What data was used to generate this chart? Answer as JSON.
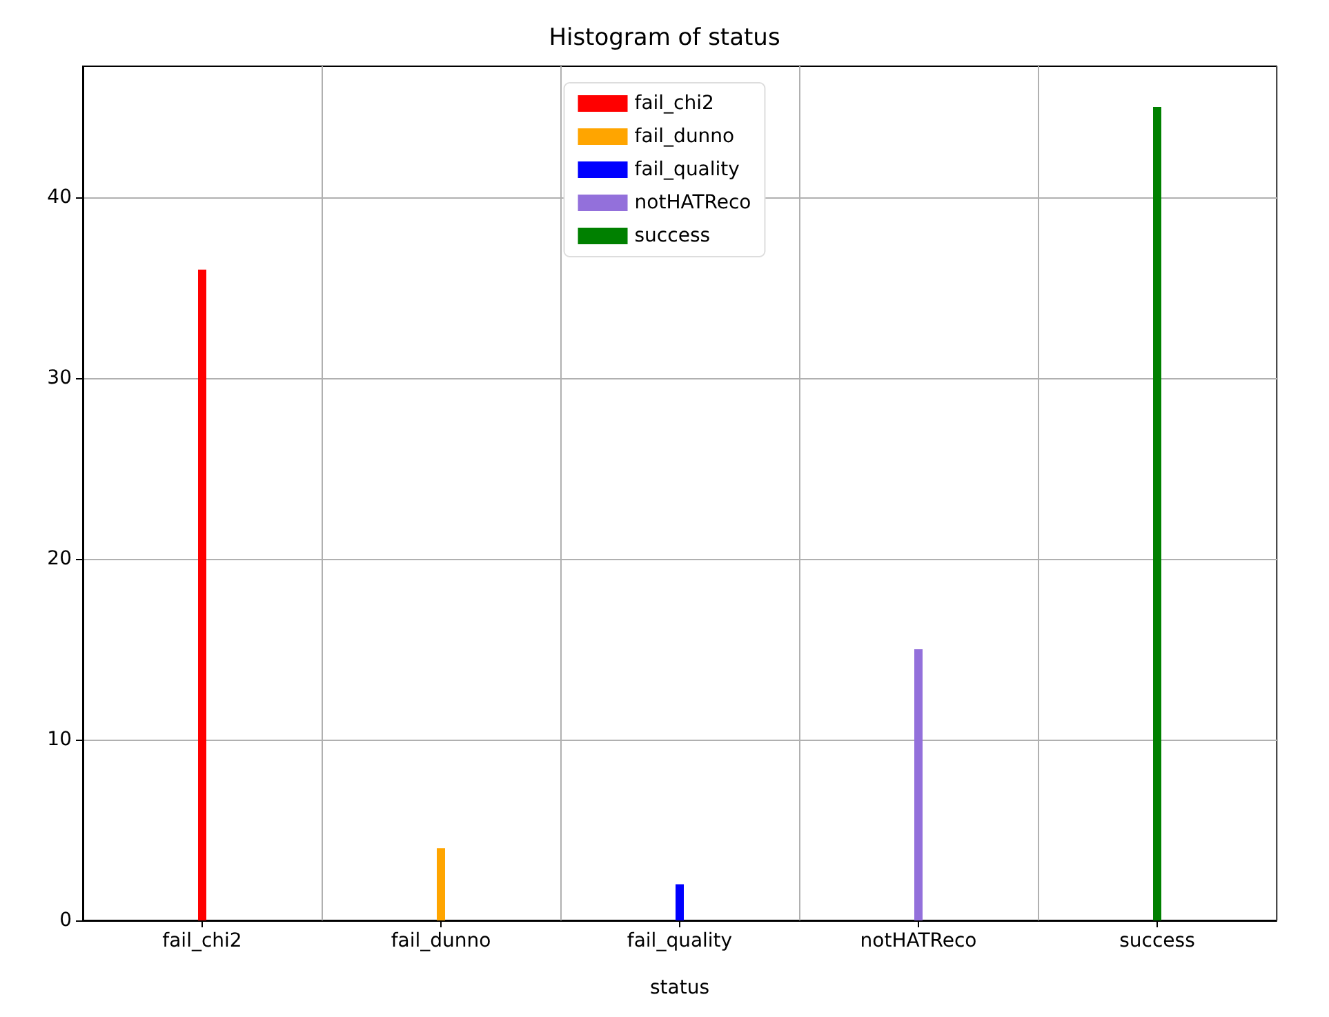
{
  "chart_data": {
    "type": "bar",
    "title": "Histogram of status",
    "xlabel": "status",
    "categories": [
      "fail_chi2",
      "fail_dunno",
      "fail_quality",
      "notHATReco",
      "success"
    ],
    "series": [
      {
        "name": "fail_chi2",
        "color": "#ff0000",
        "values": [
          36,
          null,
          null,
          null,
          null
        ]
      },
      {
        "name": "fail_dunno",
        "color": "#ffa500",
        "values": [
          null,
          4,
          null,
          null,
          null
        ]
      },
      {
        "name": "fail_quality",
        "color": "#0000ff",
        "values": [
          null,
          null,
          2,
          null,
          null
        ]
      },
      {
        "name": "notHATReco",
        "color": "#9370db",
        "values": [
          null,
          null,
          null,
          15,
          null
        ]
      },
      {
        "name": "success",
        "color": "#008000",
        "values": [
          null,
          null,
          null,
          null,
          45
        ]
      }
    ],
    "ylim": [
      0,
      47.25
    ],
    "yticks": [
      0,
      10,
      20,
      30,
      40
    ],
    "grid": true,
    "legend": "top"
  }
}
